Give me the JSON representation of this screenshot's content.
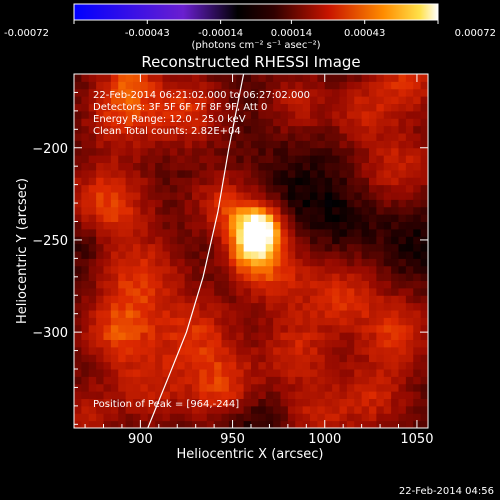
{
  "chart_data": {
    "type": "heatmap",
    "title": "Reconstructed RHESSI Image",
    "xlabel": "Heliocentric X (arcsec)",
    "ylabel": "Heliocentric Y (arcsec)",
    "xlim": [
      864,
      1056
    ],
    "ylim": [
      -352,
      -160
    ],
    "x_ticks": [
      900,
      950,
      1000,
      1050
    ],
    "y_ticks": [
      -200,
      -250,
      -300
    ],
    "colorbar": {
      "ticks": [
        "-0.00072",
        "-0.00043",
        "-0.00014",
        "0.00014",
        "0.00043",
        "0.00072"
      ],
      "range": [
        -0.00072,
        0.00072
      ],
      "unit_label": "(photons cm⁻² s⁻¹ asec⁻²)",
      "colors": [
        "#0000ff",
        "#8a2be2",
        "#000000",
        "#8b0000",
        "#ff4500",
        "#ffd700",
        "#ffffff"
      ]
    },
    "annotations": [
      "22-Feb-2014 06:21:02.000 to 06:27:02.000",
      "Detectors: 3F 5F 6F 7F 8F 9F, Att 0",
      "Energy Range: 12.0 - 25.0 keV",
      "Clean     Total counts: 2.82E+04"
    ],
    "peak_label": "Position of Peak = [964,-244]",
    "peak": {
      "x": 964,
      "y": -244
    },
    "limb_curve": [
      {
        "x": 904,
        "y": -352
      },
      {
        "x": 915,
        "y": -325
      },
      {
        "x": 925,
        "y": -300
      },
      {
        "x": 934,
        "y": -270
      },
      {
        "x": 942,
        "y": -235
      },
      {
        "x": 948,
        "y": -200
      },
      {
        "x": 953,
        "y": -175
      },
      {
        "x": 956,
        "y": -160
      }
    ],
    "blobs": [
      {
        "x": 964,
        "y": -244,
        "v": 0.00072,
        "s": 9
      },
      {
        "x": 960,
        "y": -258,
        "v": 0.0003,
        "s": 10
      },
      {
        "x": 945,
        "y": -230,
        "v": 0.00025,
        "s": 12
      },
      {
        "x": 975,
        "y": -270,
        "v": 0.00022,
        "s": 14
      },
      {
        "x": 890,
        "y": -180,
        "v": 0.00028,
        "s": 14
      },
      {
        "x": 925,
        "y": -180,
        "v": 0.00026,
        "s": 14
      },
      {
        "x": 882,
        "y": -230,
        "v": 0.0003,
        "s": 16
      },
      {
        "x": 900,
        "y": -270,
        "v": 0.00025,
        "s": 16
      },
      {
        "x": 888,
        "y": -300,
        "v": 0.00028,
        "s": 14
      },
      {
        "x": 930,
        "y": -300,
        "v": 0.00024,
        "s": 15
      },
      {
        "x": 945,
        "y": -330,
        "v": 0.00028,
        "s": 14
      },
      {
        "x": 905,
        "y": -330,
        "v": 0.0002,
        "s": 14
      },
      {
        "x": 985,
        "y": -310,
        "v": 0.00022,
        "s": 14
      },
      {
        "x": 1010,
        "y": -280,
        "v": 0.00024,
        "s": 14
      },
      {
        "x": 1040,
        "y": -300,
        "v": 0.00026,
        "s": 14
      },
      {
        "x": 1025,
        "y": -335,
        "v": 0.00022,
        "s": 14
      },
      {
        "x": 995,
        "y": -345,
        "v": 0.0002,
        "s": 12
      },
      {
        "x": 1040,
        "y": -210,
        "v": 0.00022,
        "s": 14
      },
      {
        "x": 1020,
        "y": -180,
        "v": 0.0002,
        "s": 12
      },
      {
        "x": 1045,
        "y": -165,
        "v": 0.00025,
        "s": 12
      },
      {
        "x": 985,
        "y": -175,
        "v": 0.00018,
        "s": 12
      },
      {
        "x": 870,
        "y": -345,
        "v": 0.00018,
        "s": 12
      },
      {
        "x": 895,
        "y": -160,
        "v": 0.0002,
        "s": 10
      },
      {
        "x": 990,
        "y": -225,
        "v": -0.0001,
        "s": 14
      },
      {
        "x": 870,
        "y": -250,
        "v": -0.00012,
        "s": 10
      },
      {
        "x": 1050,
        "y": -250,
        "v": -0.0001,
        "s": 14
      },
      {
        "x": 960,
        "y": -350,
        "v": -0.00012,
        "s": 12
      },
      {
        "x": 1010,
        "y": -240,
        "v": -8e-05,
        "s": 12
      }
    ]
  },
  "footer": {
    "timestamp": "22-Feb-2014 04:56"
  }
}
